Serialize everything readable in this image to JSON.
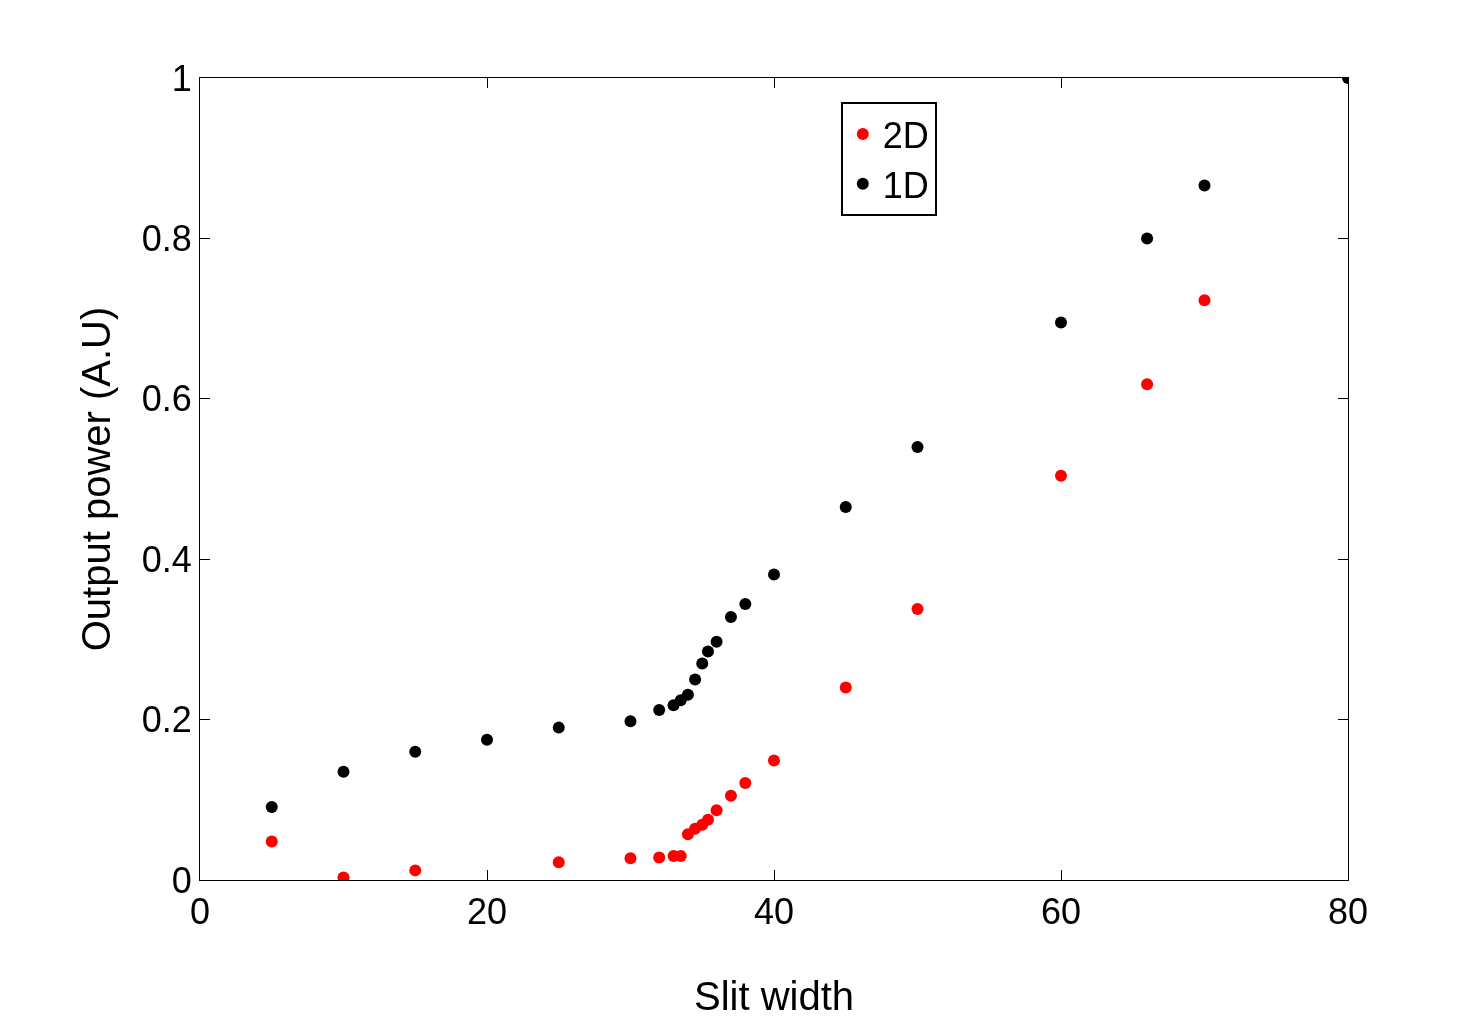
{
  "chart_data": {
    "type": "scatter",
    "xlabel": "Slit width",
    "ylabel": "Output power (A.U)",
    "xlim": [
      0,
      80
    ],
    "ylim": [
      0,
      1
    ],
    "xticks": [
      0,
      20,
      40,
      60,
      80
    ],
    "yticks": [
      0,
      0.2,
      0.4,
      0.6,
      0.8,
      1
    ],
    "grid": false,
    "legend": "top",
    "marker": "circle",
    "series": [
      {
        "name": "2D",
        "color": "#ff0000",
        "x": [
          5,
          10,
          15,
          25,
          30,
          32,
          33,
          33.5,
          34,
          34.5,
          35,
          35.4,
          36,
          37,
          38,
          40,
          45,
          50,
          60,
          66,
          70
        ],
        "values": [
          0.048,
          0.003,
          0.012,
          0.022,
          0.027,
          0.028,
          0.03,
          0.03,
          0.057,
          0.064,
          0.069,
          0.075,
          0.087,
          0.105,
          0.121,
          0.149,
          0.24,
          0.338,
          0.504,
          0.618,
          0.723
        ]
      },
      {
        "name": "1D",
        "color": "#000000",
        "x": [
          5,
          10,
          15,
          20,
          25,
          30,
          32,
          33,
          33.5,
          34,
          34.5,
          35,
          35.4,
          36,
          37,
          38,
          40,
          45,
          50,
          60,
          66,
          70,
          80
        ],
        "values": [
          0.091,
          0.135,
          0.16,
          0.175,
          0.19,
          0.198,
          0.212,
          0.218,
          0.224,
          0.231,
          0.25,
          0.27,
          0.285,
          0.297,
          0.328,
          0.344,
          0.381,
          0.465,
          0.54,
          0.695,
          0.8,
          0.866,
          1.0
        ]
      }
    ]
  }
}
